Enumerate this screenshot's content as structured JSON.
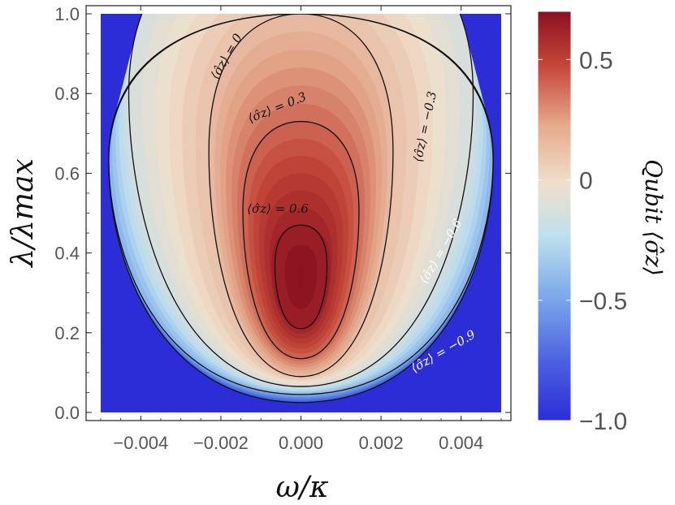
{
  "chart_data": {
    "type": "heatmap",
    "title": "",
    "xlabel": "ω/κ",
    "ylabel": "λ/λmax",
    "xlim": [
      -0.005,
      0.005
    ],
    "ylim": [
      0.0,
      1.0
    ],
    "x_ticks": [
      -0.004,
      -0.002,
      0.0,
      0.002,
      0.004
    ],
    "x_tick_labels": [
      "−0.004",
      "−0.002",
      "0.000",
      "0.002",
      "0.004"
    ],
    "y_ticks": [
      0.0,
      0.2,
      0.4,
      0.6,
      0.8,
      1.0
    ],
    "y_tick_labels": [
      "0.0",
      "0.2",
      "0.4",
      "0.6",
      "0.8",
      "1.0"
    ],
    "colorbar": {
      "label": "Qubit ⟨σ̂z⟩",
      "range": [
        -1.0,
        0.7
      ],
      "ticks": [
        0.5,
        0.0,
        -0.5,
        -1.0
      ],
      "tick_labels": [
        "0.5",
        "0",
        "−0.5",
        "−1.0"
      ],
      "colormap": [
        "#2d2dd8",
        "#5f8fe6",
        "#b9dcee",
        "#efdfcb",
        "#e2a185",
        "#c24538",
        "#8b1020"
      ]
    },
    "contours": [
      {
        "level": 0.6,
        "label": "⟨σ̂z⟩ = 0.6",
        "y_bottom": 0.21,
        "y_top": 0.47,
        "half_width": 0.00065,
        "label_color": "#111111"
      },
      {
        "level": 0.3,
        "label": "⟨σ̂z⟩ = 0.3",
        "y_bottom": 0.135,
        "y_top": 0.73,
        "half_width": 0.00145,
        "label_color": "#111111"
      },
      {
        "level": 0.0,
        "label": "⟨σ̂z⟩ = 0",
        "y_bottom": 0.09,
        "y_top": 1.0,
        "half_width": 0.0023,
        "label_color": "#111111"
      },
      {
        "level": -0.3,
        "label": "⟨σ̂z⟩ = −0.3",
        "y_bottom": 0.065,
        "y_top": 1.25,
        "half_width": 0.0043,
        "label_color": "#111111"
      },
      {
        "level": -0.6,
        "label": "⟨σ̂z⟩ = −0.6",
        "y_bottom": 0.045,
        "y_top": 1.0,
        "half_width": 0.0048,
        "label_color": "#ffffff"
      },
      {
        "level": -0.9,
        "label": "⟨σ̂z⟩ = −0.9",
        "y_bottom": 0.025,
        "y_top": 1.0,
        "half_width": 0.0048,
        "label_color": "#ffffff"
      }
    ],
    "peak": {
      "x": 0.0,
      "y": 0.34,
      "value": 0.7
    },
    "grid": false,
    "legend": "none"
  }
}
